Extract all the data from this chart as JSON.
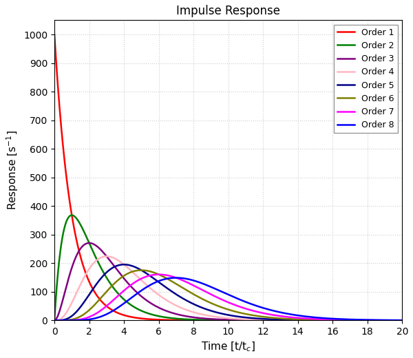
{
  "title": "Impulse Response",
  "xlabel": "Time [t/t$_c$]",
  "ylabel": "Response [s$^{-1}$]",
  "xlim": [
    0,
    20
  ],
  "ylim": [
    0,
    1050
  ],
  "xticks": [
    0,
    2,
    4,
    6,
    8,
    10,
    12,
    14,
    16,
    18,
    20
  ],
  "yticks": [
    0,
    100,
    200,
    300,
    400,
    500,
    600,
    700,
    800,
    900,
    1000
  ],
  "orders": [
    1,
    2,
    3,
    4,
    5,
    6,
    7,
    8
  ],
  "colors": [
    "#FF0000",
    "#008000",
    "#800080",
    "#FFB6C1",
    "#00008B",
    "#808000",
    "#FF00FF",
    "#0000FF"
  ],
  "legend_labels": [
    "Order 1",
    "Order 2",
    "Order 3",
    "Order 4",
    "Order 5",
    "Order 6",
    "Order 7",
    "Order 8"
  ],
  "tau": 0.001,
  "grid_color": "#CCCCCC",
  "bg_color": "#FFFFFF",
  "linewidth": 1.8,
  "title_fontsize": 12,
  "label_fontsize": 11,
  "tick_fontsize": 10,
  "legend_fontsize": 9
}
